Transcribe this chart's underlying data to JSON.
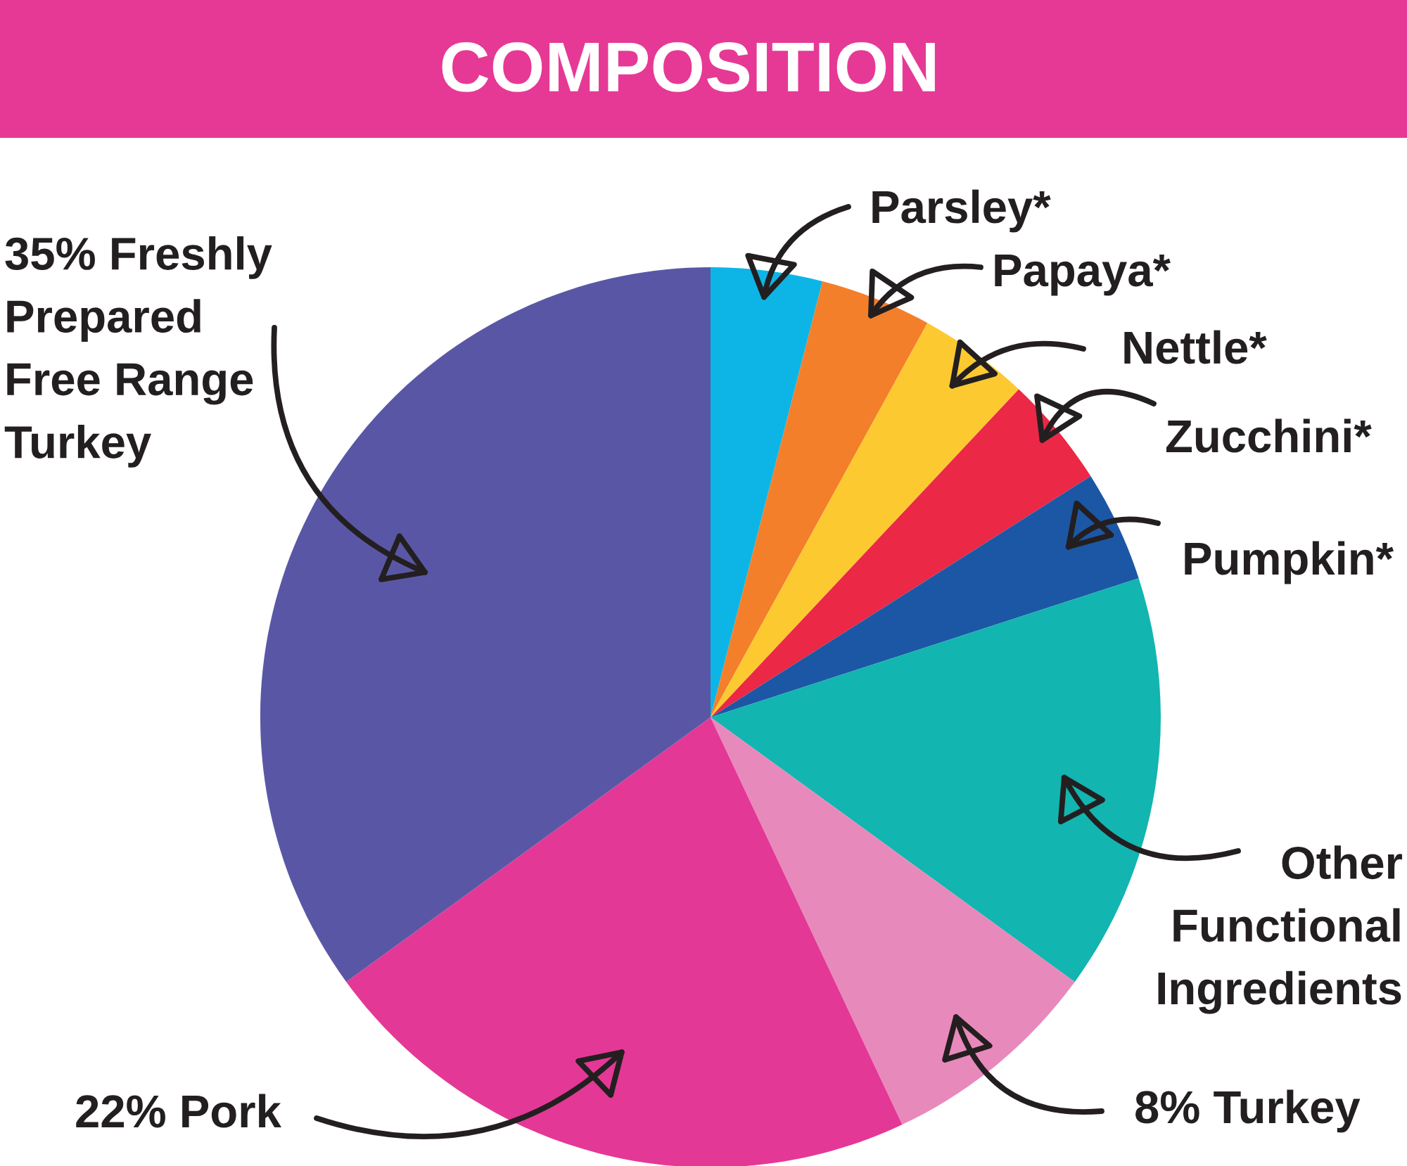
{
  "chart_data": {
    "type": "pie",
    "title": "COMPOSITION",
    "categories": [
      "Parsley*",
      "Papaya*",
      "Nettle*",
      "Zucchini*",
      "Pumpkin*",
      "Other\nFunctional\nIngredients",
      "8% Turkey",
      "22% Pork",
      "35% Freshly\nPrepared\nFree Range\nTurkey"
    ],
    "values": [
      4,
      4,
      4,
      4,
      4,
      15,
      8,
      22,
      35
    ],
    "colors": [
      "#0db5e6",
      "#f37f2a",
      "#fdc931",
      "#eb2845",
      "#1c57a5",
      "#12b5b0",
      "#e889bb",
      "#e43896",
      "#5957a5"
    ]
  }
}
